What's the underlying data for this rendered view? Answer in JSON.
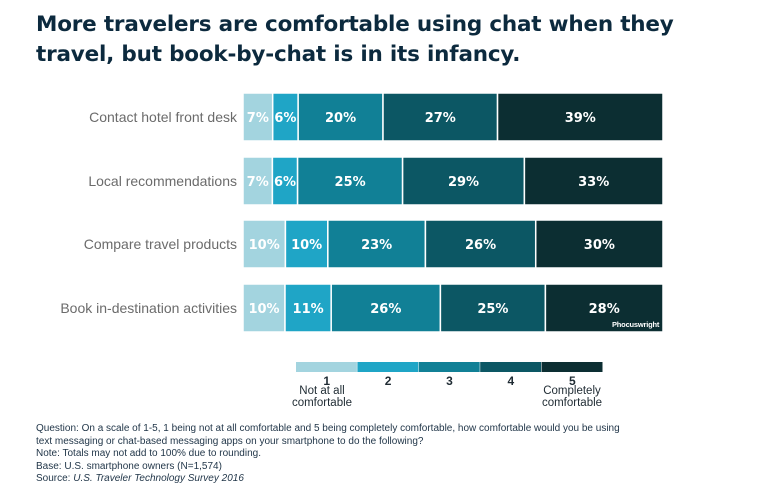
{
  "title_lines": [
    "More travelers are comfortable using chat when they",
    "travel, but book-by-chat is in its infancy."
  ],
  "chart_data": {
    "type": "bar",
    "orientation": "horizontal",
    "stacked": true,
    "categories": [
      "Contact hotel front desk",
      "Local recommendations",
      "Compare travel products",
      "Book in-destination activities"
    ],
    "series": [
      {
        "name": "1",
        "values": [
          7,
          7,
          10,
          10
        ],
        "color": "#a3d4df"
      },
      {
        "name": "2",
        "values": [
          6,
          6,
          10,
          11
        ],
        "color": "#1fa5c6"
      },
      {
        "name": "3",
        "values": [
          20,
          25,
          23,
          26
        ],
        "color": "#118096"
      },
      {
        "name": "4",
        "values": [
          27,
          29,
          26,
          25
        ],
        "color": "#0c5764"
      },
      {
        "name": "5",
        "values": [
          39,
          33,
          30,
          28
        ],
        "color": "#0c2e32"
      }
    ],
    "value_suffix": "%",
    "legend": {
      "position": "bottom",
      "low_label_lines": [
        "Not at all",
        "comfortable"
      ],
      "high_label_lines": [
        "Completely",
        "comfortable"
      ]
    },
    "grid": false
  },
  "watermark": "Phocuswright",
  "footnotes": {
    "question_line1": "Question: On a scale of 1-5, 1 being not at all comfortable and 5 being completely comfortable, how comfortable would you be using",
    "question_line2": "text messaging or chat-based messaging apps on your smartphone to do the following?",
    "note": "Note: Totals may not add to 100% due to rounding.",
    "base": "Base: U.S. smartphone owners (N=1,574)",
    "source_prefix": "Source: ",
    "source_title": "U.S. Traveler Technology Survey 2016"
  }
}
